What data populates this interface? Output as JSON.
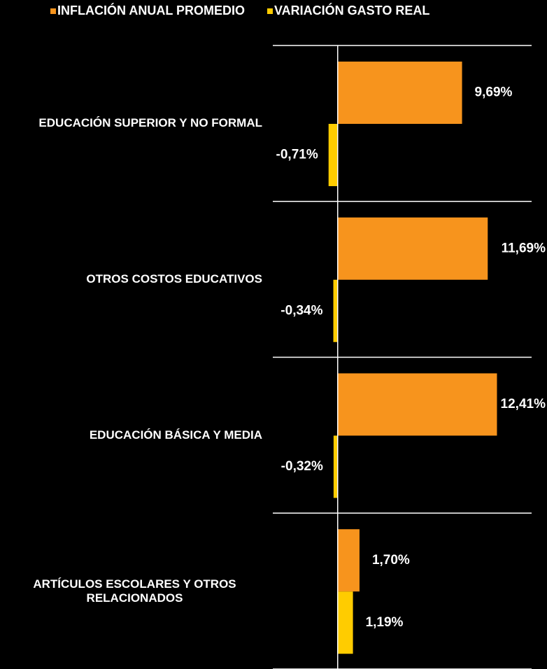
{
  "chart_data": {
    "type": "barh",
    "categories": [
      "EDUCACIÓN SUPERIOR Y NO FORMAL",
      "OTROS COSTOS EDUCATIVOS",
      "EDUCACIÓN BÁSICA Y MEDIA",
      "ARTÍCULOS ESCOLARES Y OTROS RELACIONADOS"
    ],
    "series": [
      {
        "name": "INFLACIÓN ANUAL PROMEDIO",
        "color": "#f7941d",
        "values": [
          9.69,
          11.69,
          12.41,
          1.7
        ],
        "value_labels": [
          "9,69%",
          "11,69%",
          "12,41%",
          "1,70%"
        ]
      },
      {
        "name": "VARIACIÓN GASTO REAL",
        "color": "#ffcc00",
        "values": [
          -0.71,
          -0.34,
          -0.32,
          1.19
        ],
        "value_labels": [
          "-0,71%",
          "-0,34%",
          "-0,32%",
          "1,19%"
        ]
      }
    ],
    "xlim": [
      -5,
      15
    ],
    "legend": "top"
  }
}
